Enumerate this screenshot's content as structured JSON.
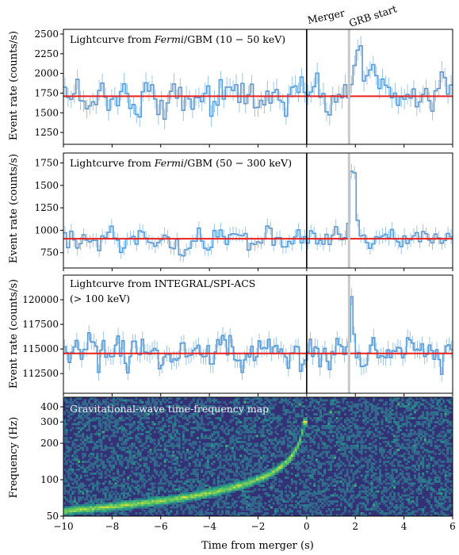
{
  "chart_data": [
    {
      "type": "line",
      "panel": "gbm-low",
      "annotation_parts": [
        "Lightcurve from ",
        "Fermi",
        "/GBM (10 − 50 keV)"
      ],
      "ylabel": "Event rate (counts/s)",
      "ylim": [
        1100,
        2560
      ],
      "yticks": [
        1250,
        1500,
        1750,
        2000,
        2250,
        2500
      ],
      "xlim": [
        -10,
        6
      ],
      "background_level": 1710,
      "noise_sigma": 120,
      "burst": {
        "peak_time": 2.1,
        "peak_value": 2350,
        "width": 0.6,
        "rate_increase": 380
      },
      "bin_width": 0.128,
      "line_color": "#5b9bd5",
      "background_color": "#e8201f"
    },
    {
      "type": "line",
      "panel": "gbm-high",
      "annotation_parts": [
        "Lightcurve from ",
        "Fermi",
        "/GBM (50 − 300 keV)"
      ],
      "ylabel": "Event rate (counts/s)",
      "ylim": [
        580,
        1860
      ],
      "yticks": [
        750,
        1000,
        1250,
        1500,
        1750
      ],
      "xlim": [
        -10,
        6
      ],
      "background_level": 905,
      "noise_sigma": 75,
      "burst": {
        "peak_time": 1.85,
        "peak_value": 1640,
        "width": 0.25,
        "rate_increase": 700
      },
      "bin_width": 0.128,
      "line_color": "#5b9bd5",
      "background_color": "#e8201f"
    },
    {
      "type": "line",
      "panel": "spi-acs",
      "annotation_lines": [
        "Lightcurve from INTEGRAL/SPI-ACS",
        "(> 100 keV)"
      ],
      "ylabel": "Event rate (counts/s)",
      "ylim": [
        110500,
        122500
      ],
      "yticks": [
        112500,
        115000,
        117500,
        120000
      ],
      "xlim": [
        -10,
        6
      ],
      "background_level": 114550,
      "noise_sigma": 800,
      "burst": {
        "peak_time": 1.85,
        "peak_value": 120300,
        "width": 0.1,
        "rate_increase": 5500
      },
      "bin_width": 0.1,
      "line_color": "#5b9bd5",
      "background_color": "#e8201f"
    },
    {
      "type": "heatmap",
      "panel": "gw-map",
      "annotation": "Gravitational-wave time-frequency map",
      "ylabel": "Frequency (Hz)",
      "xlabel": "Time from merger (s)",
      "ylim": [
        50,
        480
      ],
      "yscale": "log",
      "yticks": [
        50,
        100,
        200,
        300,
        400
      ],
      "xlim": [
        -10,
        6
      ],
      "xticks": [
        -10,
        -8,
        -6,
        -4,
        -2,
        0,
        2,
        4,
        6
      ],
      "colormap": "viridis",
      "chirp": {
        "merger_time": 0,
        "f_start": 55,
        "f_end": 300
      }
    }
  ],
  "markers": [
    {
      "label": "Merger",
      "time": 0,
      "color": "#000000"
    },
    {
      "label": "GRB start",
      "time": 1.74,
      "color": "#c8c8c8"
    }
  ]
}
